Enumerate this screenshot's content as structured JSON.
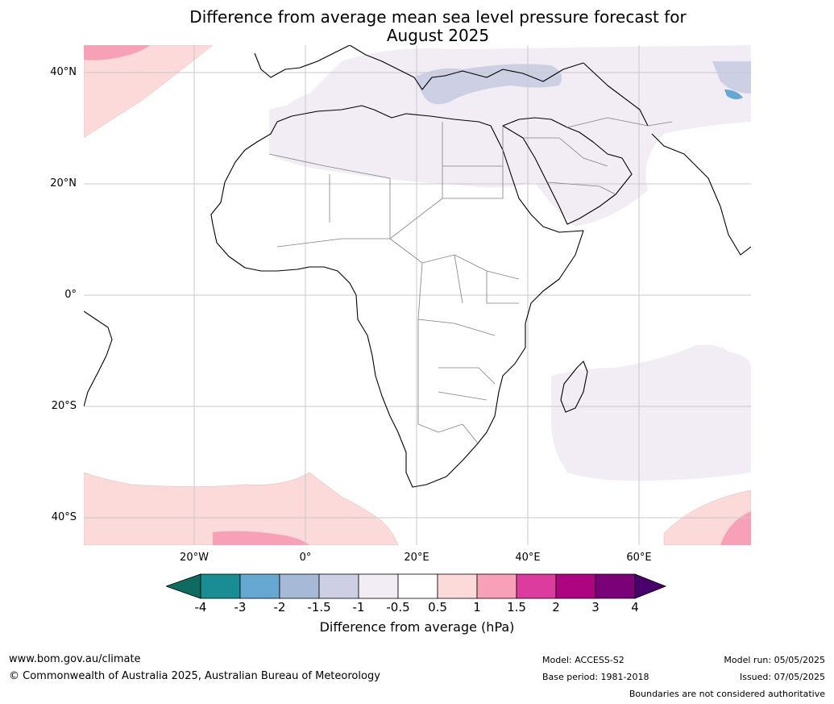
{
  "title_line1": "Difference from average mean sea level pressure forecast for",
  "title_line2": "August 2025",
  "lat_labels": [
    "40°N",
    "20°N",
    "0°",
    "20°S",
    "40°S"
  ],
  "lon_labels": [
    "20°W",
    "0°",
    "20°E",
    "40°E",
    "60°E"
  ],
  "colorbar": {
    "ticks": [
      "-4",
      "-3",
      "-2",
      "-1.5",
      "-1",
      "-0.5",
      "0.5",
      "1",
      "1.5",
      "2",
      "3",
      "4"
    ],
    "colors": [
      "#1a8c93",
      "#66a8d2",
      "#a6b9d6",
      "#cdcfe4",
      "#f2ecf5",
      "#ffffff",
      "#fddada",
      "#f8a0b7",
      "#dc3c9d",
      "#ad0582",
      "#7a0177"
    ],
    "under_color": "#0e6b5f",
    "over_color": "#49006a",
    "label": "Difference from average (hPa)"
  },
  "footer": {
    "website": "www.bom.gov.au/climate",
    "copyright": "© Commonwealth of Australia 2025, Australian Bureau of Meteorology",
    "model": "Model: ACCESS-S2",
    "base_period": "Base period: 1981-2018",
    "model_run": "Model run: 05/05/2025",
    "issued": "Issued: 07/05/2025",
    "disclaimer": "Boundaries are not considered authoritative"
  }
}
